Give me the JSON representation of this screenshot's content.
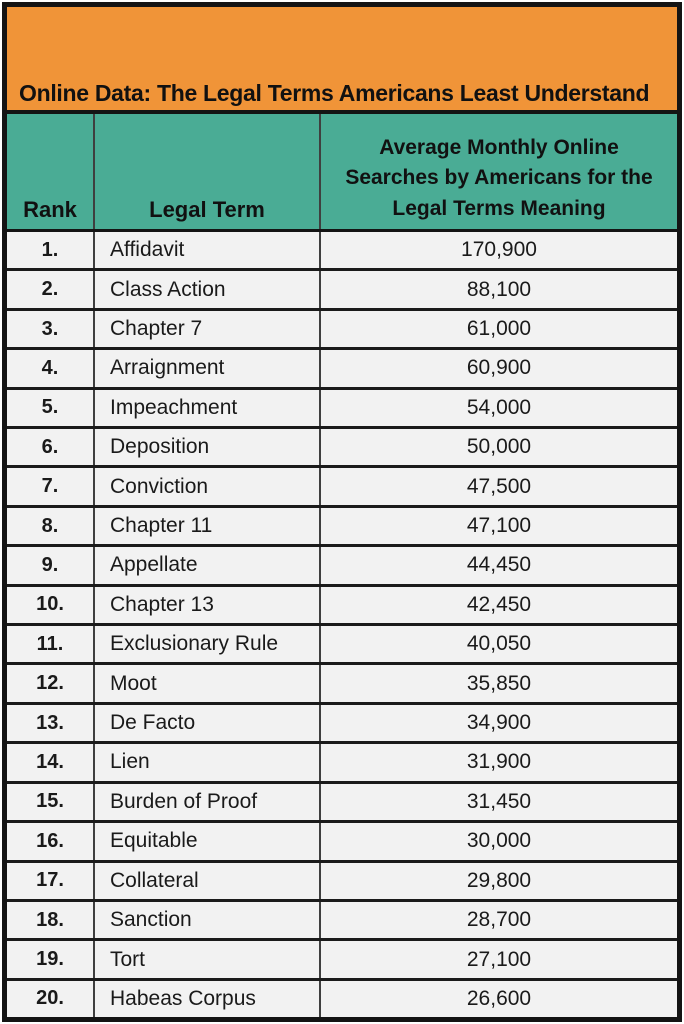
{
  "title": "Online Data: The Legal Terms Americans Least Understand",
  "colors": {
    "banner_orange": "#F09438",
    "header_teal": "#4AAC95",
    "row_background": "#F2F2F2",
    "border_black": "#141414"
  },
  "table": {
    "columns": {
      "rank": "Rank",
      "term": "Legal Term",
      "searches": "Average Monthly Online\nSearches by Americans for the\nLegal Terms Meaning"
    },
    "rows": [
      {
        "rank": "1.",
        "term": "Affidavit",
        "searches": "170,900"
      },
      {
        "rank": "2.",
        "term": "Class Action",
        "searches": "88,100"
      },
      {
        "rank": "3.",
        "term": "Chapter 7",
        "searches": "61,000"
      },
      {
        "rank": "4.",
        "term": "Arraignment",
        "searches": "60,900"
      },
      {
        "rank": "5.",
        "term": "Impeachment",
        "searches": "54,000"
      },
      {
        "rank": "6.",
        "term": "Deposition",
        "searches": "50,000"
      },
      {
        "rank": "7.",
        "term": "Conviction",
        "searches": "47,500"
      },
      {
        "rank": "8.",
        "term": "Chapter 11",
        "searches": "47,100"
      },
      {
        "rank": "9.",
        "term": "Appellate",
        "searches": "44,450"
      },
      {
        "rank": "10.",
        "term": "Chapter 13",
        "searches": "42,450"
      },
      {
        "rank": "11.",
        "term": "Exclusionary Rule",
        "searches": "40,050"
      },
      {
        "rank": "12.",
        "term": "Moot",
        "searches": "35,850"
      },
      {
        "rank": "13.",
        "term": "De Facto",
        "searches": "34,900"
      },
      {
        "rank": "14.",
        "term": "Lien",
        "searches": "31,900"
      },
      {
        "rank": "15.",
        "term": "Burden of Proof",
        "searches": "31,450"
      },
      {
        "rank": "16.",
        "term": "Equitable",
        "searches": "30,000"
      },
      {
        "rank": "17.",
        "term": "Collateral",
        "searches": "29,800"
      },
      {
        "rank": "18.",
        "term": "Sanction",
        "searches": "28,700"
      },
      {
        "rank": "19.",
        "term": "Tort",
        "searches": "27,100"
      },
      {
        "rank": "20.",
        "term": "Habeas Corpus",
        "searches": "26,600"
      }
    ]
  },
  "chart_data": {
    "type": "table",
    "title": "Online Data: The Legal Terms Americans Least Understand",
    "columns": [
      "Rank",
      "Legal Term",
      "Average Monthly Online Searches by Americans for the Legal Terms Meaning"
    ],
    "rows": [
      [
        1,
        "Affidavit",
        170900
      ],
      [
        2,
        "Class Action",
        88100
      ],
      [
        3,
        "Chapter 7",
        61000
      ],
      [
        4,
        "Arraignment",
        60900
      ],
      [
        5,
        "Impeachment",
        54000
      ],
      [
        6,
        "Deposition",
        50000
      ],
      [
        7,
        "Conviction",
        47500
      ],
      [
        8,
        "Chapter 11",
        47100
      ],
      [
        9,
        "Appellate",
        44450
      ],
      [
        10,
        "Chapter 13",
        42450
      ],
      [
        11,
        "Exclusionary Rule",
        40050
      ],
      [
        12,
        "Moot",
        35850
      ],
      [
        13,
        "De Facto",
        34900
      ],
      [
        14,
        "Lien",
        31900
      ],
      [
        15,
        "Burden of Proof",
        31450
      ],
      [
        16,
        "Equitable",
        30000
      ],
      [
        17,
        "Collateral",
        29800
      ],
      [
        18,
        "Sanction",
        28700
      ],
      [
        19,
        "Tort",
        27100
      ],
      [
        20,
        "Habeas Corpus",
        26600
      ]
    ]
  }
}
